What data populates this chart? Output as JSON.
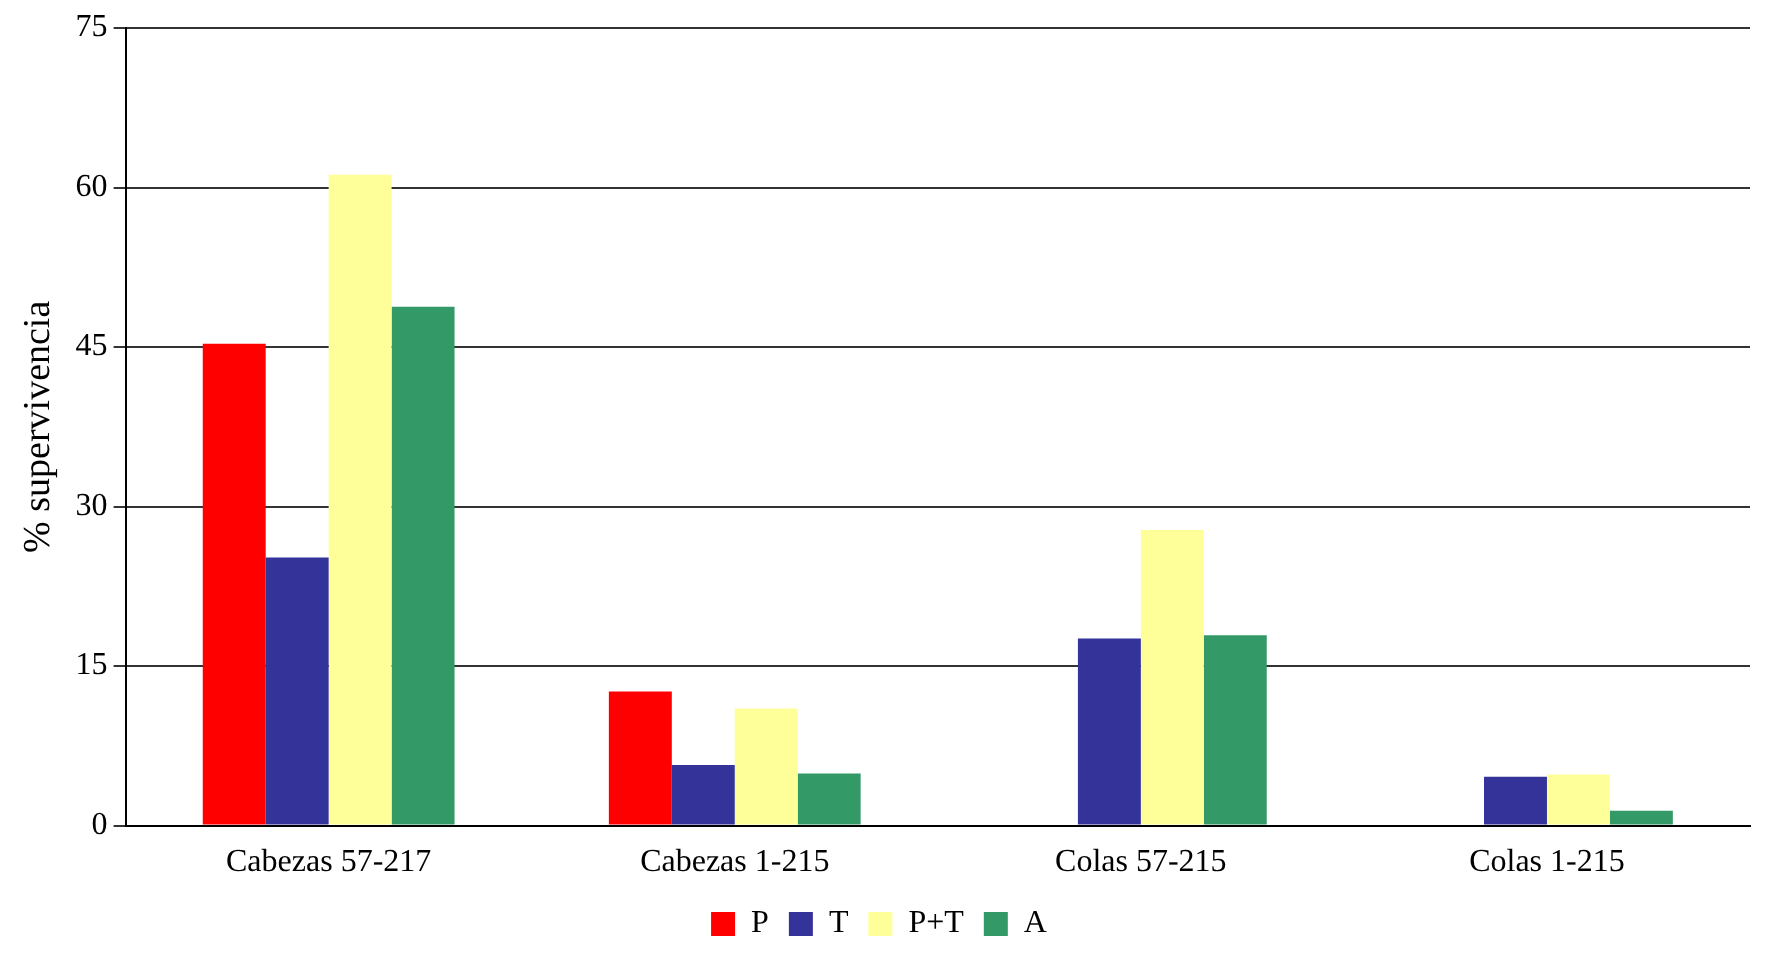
{
  "chart_data": {
    "type": "bar",
    "ylabel": "% supervivencia",
    "categories": [
      "Cabezas 57-217",
      "Cabezas 1-215",
      "Colas 57-215",
      "Colas 1-215"
    ],
    "series": [
      {
        "name": "P",
        "color": "#ff0000",
        "values": [
          45.3,
          12.6,
          0,
          0
        ]
      },
      {
        "name": "T",
        "color": "#333399",
        "values": [
          25.2,
          5.7,
          17.6,
          4.6
        ]
      },
      {
        "name": "P+T",
        "color": "#ffff99",
        "values": [
          61.2,
          11.0,
          27.8,
          4.8
        ]
      },
      {
        "name": "A",
        "color": "#339966",
        "values": [
          48.8,
          4.9,
          17.9,
          1.4
        ]
      }
    ],
    "ylim": [
      0,
      75
    ],
    "yticks": [
      0,
      15,
      30,
      45,
      60,
      75
    ],
    "grid": "y",
    "legend": "bottom"
  }
}
